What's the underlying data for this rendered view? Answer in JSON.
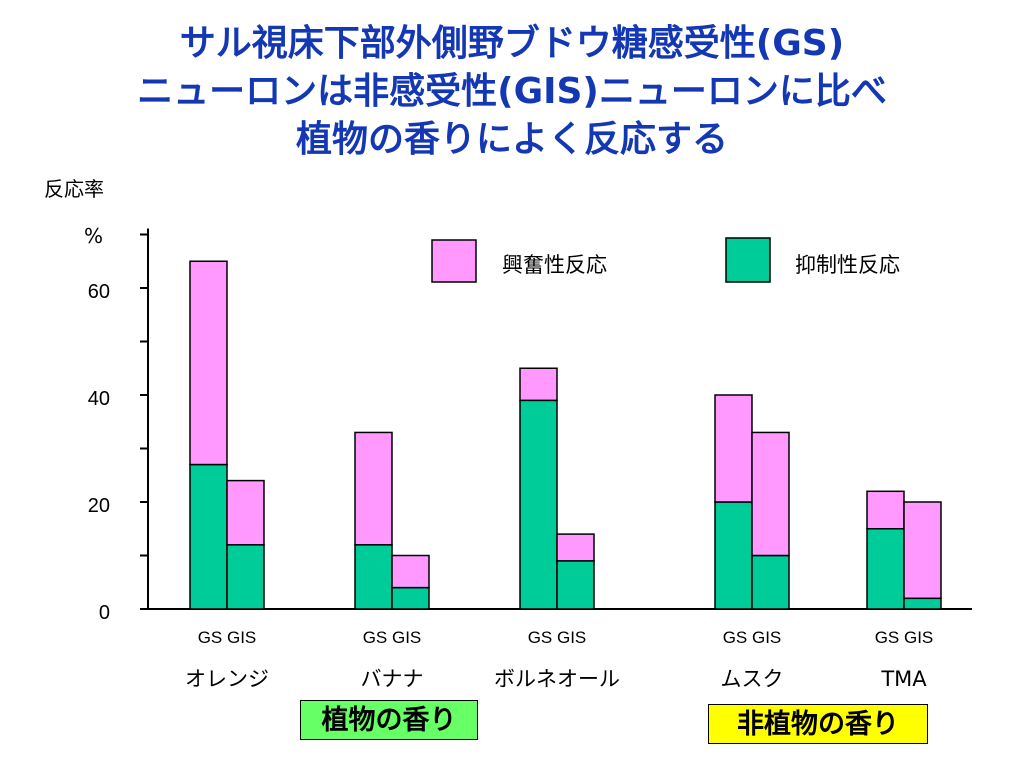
{
  "title_lines": [
    "サル視床下部外側野ブドウ糖感受性(GS)",
    "ニューロンは非感受性(GIS)ニューロンに比べ",
    "植物の香りによく反応する"
  ],
  "colors": {
    "title": "#1437b4",
    "excitatory": "#ff99ff",
    "inhibitory": "#00cc99",
    "plant_box": "#66ff66",
    "nonplant_box": "#ffff00"
  },
  "group_labels": {
    "plant": "植物の香り",
    "nonplant": "非植物の香り"
  },
  "chart_data": {
    "type": "bar",
    "stacked": true,
    "ylabel": "反応率",
    "yunit": "%",
    "ylim": [
      0,
      70
    ],
    "yticks": [
      0,
      20,
      40,
      60
    ],
    "grid": false,
    "legend_position": "top-right",
    "categories": [
      "オレンジ",
      "バナナ",
      "ボルネオール",
      "ムスク",
      "TMA"
    ],
    "sub_labels": [
      "GS",
      "GIS"
    ],
    "series": [
      {
        "name": "抑制性反応",
        "values": [
          [
            27,
            12
          ],
          [
            12,
            4
          ],
          [
            39,
            9
          ],
          [
            20,
            10
          ],
          [
            15,
            2
          ]
        ]
      },
      {
        "name": "興奮性反応",
        "values": [
          [
            38,
            12
          ],
          [
            21,
            6
          ],
          [
            6,
            5
          ],
          [
            20,
            23
          ],
          [
            7,
            18
          ]
        ]
      }
    ]
  }
}
